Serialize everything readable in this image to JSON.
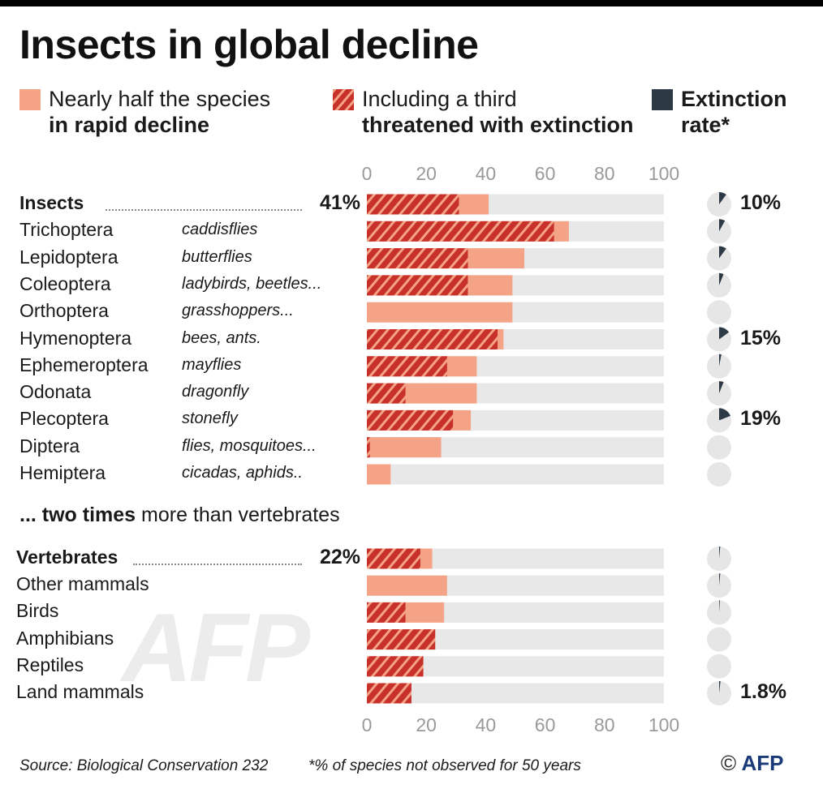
{
  "title": "Insects in global decline",
  "legend": {
    "decline_line1": "Nearly half the species",
    "decline_line2": "in rapid decline",
    "threat_line1": "Including a third",
    "threat_line2": "threatened with extinction",
    "ext_line1": "Extinction",
    "ext_line2": "rate*"
  },
  "colors": {
    "decline": "#f4a386",
    "threatened": "#c8302a",
    "stripe": "#f4a386",
    "track": "#e8e8e8",
    "extinction": "#2d3a45",
    "pie_bg": "#e6e6e6"
  },
  "subhead_bold": "... two times",
  "subhead_rest": " more than vertebrates",
  "source": "Source: Biological Conservation 232",
  "footnote": "*% of species not observed for 50 years",
  "credit_symbol": "©",
  "credit_name": "AFP",
  "watermark": "AFP",
  "chart_data": [
    {
      "type": "bar",
      "orientation": "horizontal",
      "stacked": "overlay",
      "title": "Insects",
      "xlim": [
        0,
        100
      ],
      "ticks": [
        "0",
        "20",
        "40",
        "60",
        "80",
        "100"
      ],
      "series": [
        {
          "name": "Nearly half the species in rapid decline",
          "key": "decline"
        },
        {
          "name": "Including a third threatened with extinction",
          "key": "threatened"
        },
        {
          "name": "Extinction rate*",
          "key": "extinction"
        }
      ],
      "rows": [
        {
          "label": "Insects",
          "common": "",
          "bold": true,
          "pct_label": "41%",
          "decline": 41,
          "threatened": 31,
          "extinction": 10,
          "ext_label": "10%"
        },
        {
          "label": "Trichoptera",
          "common": "caddisflies",
          "bold": false,
          "pct_label": "",
          "decline": 68,
          "threatened": 63,
          "extinction": 8,
          "ext_label": ""
        },
        {
          "label": "Lepidoptera",
          "common": "butterflies",
          "bold": false,
          "pct_label": "",
          "decline": 53,
          "threatened": 34,
          "extinction": 10,
          "ext_label": ""
        },
        {
          "label": "Coleoptera",
          "common": "ladybirds, beetles...",
          "bold": false,
          "pct_label": "",
          "decline": 49,
          "threatened": 34,
          "extinction": 6,
          "ext_label": ""
        },
        {
          "label": "Orthoptera",
          "common": "grasshoppers...",
          "bold": false,
          "pct_label": "",
          "decline": 49,
          "threatened": 0,
          "extinction": 0,
          "ext_label": ""
        },
        {
          "label": "Hymenoptera",
          "common": "bees, ants.",
          "bold": false,
          "pct_label": "",
          "decline": 46,
          "threatened": 44,
          "extinction": 15,
          "ext_label": "15%"
        },
        {
          "label": "Ephemeroptera",
          "common": "mayflies",
          "bold": false,
          "pct_label": "",
          "decline": 37,
          "threatened": 27,
          "extinction": 3,
          "ext_label": ""
        },
        {
          "label": "Odonata",
          "common": "dragonfly",
          "bold": false,
          "pct_label": "",
          "decline": 37,
          "threatened": 13,
          "extinction": 6,
          "ext_label": ""
        },
        {
          "label": "Plecoptera",
          "common": "stonefly",
          "bold": false,
          "pct_label": "",
          "decline": 35,
          "threatened": 29,
          "extinction": 19,
          "ext_label": "19%"
        },
        {
          "label": "Diptera",
          "common": "flies, mosquitoes...",
          "bold": false,
          "pct_label": "",
          "decline": 25,
          "threatened": 1,
          "extinction": 0,
          "ext_label": ""
        },
        {
          "label": "Hemiptera",
          "common": "cicadas, aphids..",
          "bold": false,
          "pct_label": "",
          "decline": 8,
          "threatened": 0,
          "extinction": 0,
          "ext_label": ""
        }
      ]
    },
    {
      "type": "bar",
      "orientation": "horizontal",
      "stacked": "overlay",
      "title": "Vertebrates",
      "xlim": [
        0,
        100
      ],
      "ticks": [
        "0",
        "20",
        "40",
        "60",
        "80",
        "100"
      ],
      "rows": [
        {
          "label": "Vertebrates",
          "common": "",
          "bold": true,
          "pct_label": "22%",
          "decline": 22,
          "threatened": 18,
          "extinction": 1.5,
          "ext_label": ""
        },
        {
          "label": "Other mammals",
          "common": "",
          "bold": false,
          "pct_label": "",
          "decline": 27,
          "threatened": 0,
          "extinction": 1.5,
          "ext_label": ""
        },
        {
          "label": "Birds",
          "common": "",
          "bold": false,
          "pct_label": "",
          "decline": 26,
          "threatened": 13,
          "extinction": 1,
          "ext_label": ""
        },
        {
          "label": "Amphibians",
          "common": "",
          "bold": false,
          "pct_label": "",
          "decline": 23,
          "threatened": 23,
          "extinction": 0,
          "ext_label": ""
        },
        {
          "label": "Reptiles",
          "common": "",
          "bold": false,
          "pct_label": "",
          "decline": 19,
          "threatened": 19,
          "extinction": 0,
          "ext_label": ""
        },
        {
          "label": "Land mammals",
          "common": "",
          "bold": false,
          "pct_label": "",
          "decline": 15,
          "threatened": 15,
          "extinction": 1.8,
          "ext_label": "1.8%"
        }
      ]
    }
  ]
}
